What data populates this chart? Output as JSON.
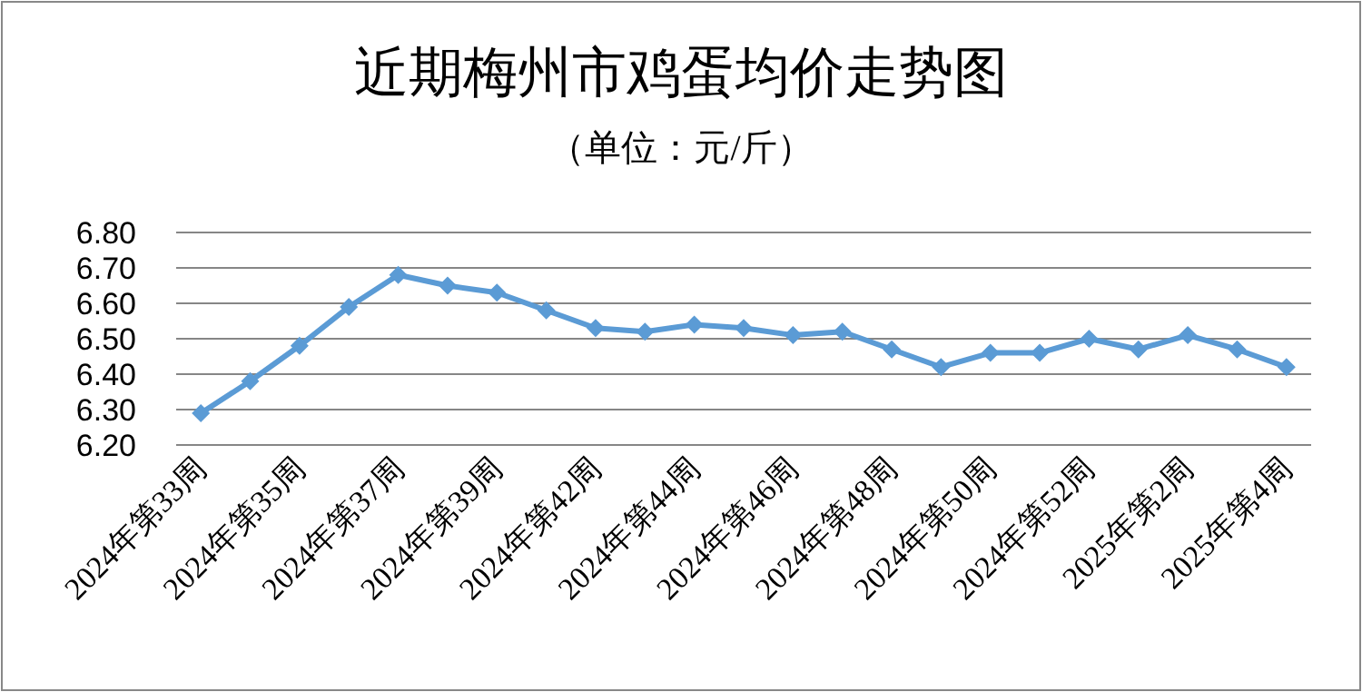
{
  "chart_data": {
    "type": "line",
    "title": "近期梅州市鸡蛋均价走势图",
    "subtitle": "（单位：元/斤）",
    "categories": [
      "2024年第33周",
      null,
      "2024年第35周",
      null,
      "2024年第37周",
      null,
      "2024年第39周",
      null,
      "2024年第42周",
      null,
      "2024年第44周",
      null,
      "2024年第46周",
      null,
      "2024年第48周",
      null,
      "2024年第50周",
      null,
      "2024年第52周",
      null,
      "2025年第2周",
      null,
      "2025年第4周"
    ],
    "series": [
      {
        "color": "#5b9bd5",
        "values": [
          6.29,
          6.38,
          6.48,
          6.59,
          6.68,
          6.65,
          6.63,
          6.58,
          6.53,
          6.52,
          6.54,
          6.53,
          6.51,
          6.52,
          6.47,
          6.42,
          6.46,
          6.46,
          6.5,
          6.47,
          6.51,
          6.47,
          6.42
        ]
      }
    ],
    "ylim": [
      6.2,
      6.8
    ],
    "yticks": [
      {
        "value": 6.2,
        "label": "6.20"
      },
      {
        "value": 6.3,
        "label": "6.30"
      },
      {
        "value": 6.4,
        "label": "6.40"
      },
      {
        "value": 6.5,
        "label": "6.50"
      },
      {
        "value": 6.6,
        "label": "6.60"
      },
      {
        "value": 6.7,
        "label": "6.70"
      },
      {
        "value": 6.8,
        "label": "6.80"
      }
    ],
    "grid": "y",
    "marker": "diamond",
    "line_style": "solid"
  }
}
